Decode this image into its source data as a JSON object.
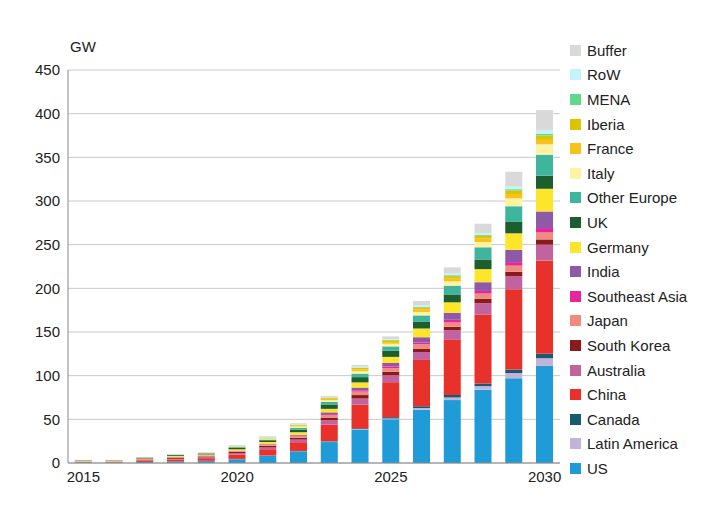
{
  "chart_data": {
    "type": "bar",
    "stacked": true,
    "grid": true,
    "legend": "right",
    "y_label": "GW",
    "categories": [
      "2015",
      null,
      null,
      null,
      null,
      "2020",
      null,
      null,
      null,
      null,
      "2025",
      null,
      null,
      null,
      null,
      "2030"
    ],
    "ylim": [
      0,
      450
    ],
    "yticks": [
      0,
      50,
      100,
      150,
      200,
      250,
      300,
      350,
      400,
      450
    ],
    "series": [
      {
        "name": "US",
        "color": "#1f9bd7",
        "values": [
          0.5,
          0.5,
          1,
          1.5,
          2,
          4,
          8,
          13,
          24,
          38,
          50,
          61,
          72,
          84,
          97,
          111
        ]
      },
      {
        "name": "Latin America",
        "color": "#c3b3d9",
        "values": [
          0,
          0,
          0,
          0,
          0,
          0.2,
          0.2,
          0.3,
          0.5,
          0.8,
          1,
          2,
          3,
          4,
          6,
          9
        ]
      },
      {
        "name": "Canada",
        "color": "#1a5a6e",
        "values": [
          0,
          0,
          0.2,
          0.3,
          0.5,
          0.5,
          0.5,
          0.5,
          0.5,
          1,
          1.5,
          2,
          3,
          3,
          4,
          5
        ]
      },
      {
        "name": "China",
        "color": "#e8312a",
        "values": [
          0.5,
          0.5,
          1.5,
          2,
          3,
          5,
          7,
          10,
          19,
          27,
          40,
          53,
          63,
          79,
          92,
          107
        ]
      },
      {
        "name": "Australia",
        "color": "#c1639e",
        "values": [
          0.5,
          0.5,
          0.5,
          1,
          1,
          1.5,
          2,
          3,
          5,
          7,
          8,
          9,
          11,
          13,
          15,
          18
        ]
      },
      {
        "name": "South Korea",
        "color": "#8b1a1a",
        "values": [
          0,
          0,
          0.5,
          1,
          1,
          1.5,
          2,
          2,
          3,
          4,
          4,
          4,
          4,
          5,
          5,
          6
        ]
      },
      {
        "name": "Japan",
        "color": "#f08c7e",
        "values": [
          0.5,
          0.5,
          1,
          1,
          1,
          1,
          1.5,
          2,
          3,
          4,
          4,
          5,
          5,
          6,
          7,
          8
        ]
      },
      {
        "name": "Southeast Asia",
        "color": "#e8259b",
        "values": [
          0,
          0,
          0,
          0.2,
          0.3,
          0.3,
          0.3,
          0.5,
          1,
          1.5,
          2,
          2,
          3,
          3,
          4,
          5
        ]
      },
      {
        "name": "India",
        "color": "#8e5aa8",
        "values": [
          0,
          0,
          0,
          0,
          0,
          0.2,
          0.5,
          1,
          2,
          3,
          4,
          6,
          8,
          10,
          14,
          19
        ]
      },
      {
        "name": "Germany",
        "color": "#fde52c",
        "values": [
          0.5,
          0.5,
          0.5,
          1,
          1,
          1.5,
          2,
          3,
          4,
          6,
          7,
          10,
          12,
          15,
          19,
          26
        ]
      },
      {
        "name": "UK",
        "color": "#1c5e2e",
        "values": [
          0.5,
          0.5,
          1,
          1,
          1,
          1.5,
          2,
          3,
          5,
          6,
          7,
          8,
          9,
          11,
          13,
          15
        ]
      },
      {
        "name": "Other Europe",
        "color": "#3fb59e",
        "values": [
          0,
          0,
          0,
          0.5,
          0.5,
          1,
          1,
          2,
          3,
          4,
          5,
          7,
          10,
          14,
          18,
          24
        ]
      },
      {
        "name": "Italy",
        "color": "#fdf3a2",
        "values": [
          0,
          0,
          0,
          0.2,
          0.3,
          0.5,
          1,
          1.5,
          2,
          3,
          3,
          4,
          5,
          6,
          9,
          12
        ]
      },
      {
        "name": "France",
        "color": "#f7c21c",
        "values": [
          0,
          0,
          0,
          0,
          0.2,
          0.3,
          0.5,
          1,
          1.5,
          2,
          2,
          3,
          3,
          4,
          5,
          5
        ]
      },
      {
        "name": "Iberia",
        "color": "#dcc400",
        "values": [
          0,
          0,
          0,
          0,
          0.2,
          0.3,
          0.5,
          1,
          1,
          1.5,
          2,
          2,
          3,
          3,
          4,
          5
        ]
      },
      {
        "name": "MENA",
        "color": "#5fd98b",
        "values": [
          0.3,
          0.2,
          0,
          0,
          0,
          0,
          0.2,
          0.2,
          0.3,
          0.5,
          0.5,
          1,
          1,
          1,
          1.5,
          2
        ]
      },
      {
        "name": "RoW",
        "color": "#c6f2fb",
        "values": [
          0,
          0,
          0,
          0,
          0,
          0.2,
          0.3,
          0.5,
          0.5,
          1,
          1,
          1.5,
          2,
          2,
          3,
          4
        ]
      },
      {
        "name": "Buffer",
        "color": "#d9d9d9",
        "values": [
          0.3,
          0.3,
          0.5,
          0.5,
          0.5,
          1,
          1,
          1,
          1.5,
          2,
          3,
          5,
          7,
          11,
          17,
          23
        ]
      }
    ]
  }
}
